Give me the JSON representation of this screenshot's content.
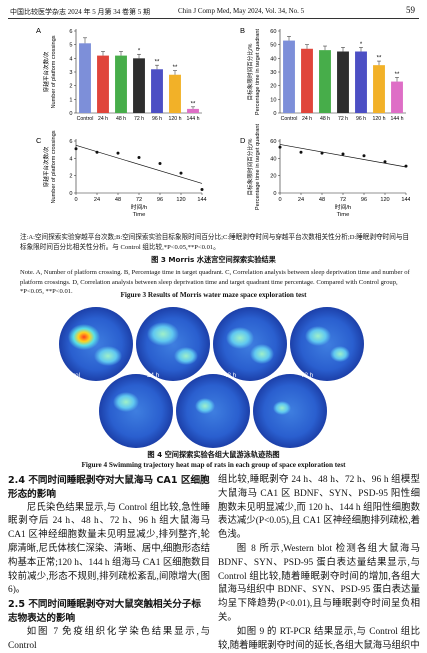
{
  "header": {
    "journal_cn": "中国比较医学杂志 2024 年 5 月第 34 卷第 5 期",
    "journal_en": "Chin J Comp Med, May 2024, Vol. 34, No. 5",
    "page": "59"
  },
  "figure3": {
    "panels": [
      {
        "type": "bar",
        "label": "A",
        "ylabel": [
          "穿越平台次数/次",
          "Number of platform crossings"
        ],
        "categories": [
          "Control",
          "24 h",
          "48 h",
          "72 h",
          "96 h",
          "120 h",
          "144 h"
        ],
        "values": [
          5.1,
          4.2,
          4.2,
          4.0,
          3.2,
          2.8,
          0.3
        ],
        "errors": [
          0.4,
          0.3,
          0.3,
          0.3,
          0.3,
          0.3,
          0.15
        ],
        "significance": [
          null,
          null,
          null,
          "*",
          "**",
          "**",
          "**"
        ],
        "colors": [
          "#7d8fd9",
          "#e0453b",
          "#47ad4a",
          "#2e2e2e",
          "#4c4fc4",
          "#f2b128",
          "#de6ec6"
        ],
        "ylim": [
          0,
          6
        ],
        "yticks": [
          0,
          1,
          2,
          3,
          4,
          5,
          6
        ]
      },
      {
        "type": "bar",
        "label": "B",
        "ylabel": [
          "目标象限时间百分比/%",
          "Percentage time in target quadrant"
        ],
        "categories": [
          "Control",
          "24 h",
          "48 h",
          "72 h",
          "96 h",
          "120 h",
          "144 h"
        ],
        "values": [
          53,
          47,
          46,
          45,
          45,
          35,
          23
        ],
        "errors": [
          3,
          3,
          3,
          3,
          3,
          3,
          3
        ],
        "significance": [
          null,
          null,
          null,
          null,
          "*",
          "**",
          "**"
        ],
        "colors": [
          "#7d8fd9",
          "#e0453b",
          "#47ad4a",
          "#2e2e2e",
          "#4c4fc4",
          "#f2b128",
          "#de6ec6"
        ],
        "ylim": [
          0,
          60
        ],
        "yticks": [
          0,
          10,
          20,
          30,
          40,
          50,
          60
        ]
      },
      {
        "type": "scatter",
        "label": "C",
        "ylabel": [
          "穿越平台次数/次",
          "Number of platform crossings"
        ],
        "xlabel": [
          "时间/h",
          "Time"
        ],
        "x": [
          0,
          24,
          48,
          72,
          96,
          120,
          144
        ],
        "values": [
          5.1,
          4.7,
          4.6,
          4.1,
          3.4,
          2.3,
          0.4
        ],
        "fit": {
          "x": [
            0,
            144
          ],
          "values": [
            5.5,
            1.1
          ]
        },
        "color": "#111111",
        "xlim": [
          0,
          144
        ],
        "xticks": [
          0,
          24,
          48,
          72,
          96,
          120,
          144
        ],
        "ylim": [
          0,
          6
        ],
        "yticks": [
          0,
          2,
          4,
          6
        ]
      },
      {
        "type": "scatter",
        "label": "D",
        "ylabel": [
          "目标象限时间百分比/%",
          "Percentage time in target quadrant"
        ],
        "xlabel": [
          "时间/h",
          "Time"
        ],
        "x": [
          0,
          24,
          48,
          72,
          96,
          120,
          144
        ],
        "values": [
          53,
          47,
          46,
          45,
          43,
          36,
          31
        ],
        "fit": {
          "x": [
            0,
            144
          ],
          "values": [
            56,
            30
          ]
        },
        "color": "#111111",
        "xlim": [
          0,
          144
        ],
        "xticks": [
          0,
          24,
          48,
          72,
          96,
          120,
          144
        ],
        "ylim": [
          0,
          60
        ],
        "yticks": [
          0,
          20,
          40,
          60
        ]
      }
    ],
    "note_cn": "注:A:空间探索实验穿越平台次数;B:空间探索实验目标象限时间百分比;C:睡眠剥夺时间与穿越平台次数相关性分析;D:睡眠剥夺时间与目标象限时间百分比相关性分析。与 Control 组比较,*P<0.05,**P<0.01。",
    "title_cn": "图 3  Morris 水迷宫空间探索实验结果",
    "note_en": "Note. A, Number of platform crossing. B, Percentage time in target quadrant. C, Correlation analysis between sleep deprivation time and number of platform crossings. D, Correlation analysis between sleep deprivation time and target quadrant time percentage. Compared with Control group, *P<0.05, **P<0.01.",
    "title_en": "Figure 3  Results of Morris water maze space exploration test"
  },
  "figure4": {
    "labels": [
      "Control",
      "24 h",
      "48 h",
      "72 h",
      "96 h",
      "120 h",
      "144 h"
    ],
    "title_cn": "图 4  空间探索实验各组大鼠游泳轨迹热图",
    "title_en": "Figure 4  Swimming trajectory heat map of rats in each group of space exploration test"
  },
  "body": {
    "left": {
      "heading1": "2.4  不同时间睡眠剥夺对大鼠海马 CA1 区细胞形态的影响",
      "para1": "尼氏染色结果显示,与 Control 组比较,急性睡眠剥夺后 24 h、48 h、72 h、96 h 组大鼠海马 CA1 区神经细胞数量未见明显减少,排列整齐,轮廓清晰,尼氏体核仁深染、清晰、居中,细胞形态结构基本正常;120 h、144 h 组海马 CA1 区细胞数目较前减少,形态不规则,排列疏松紊乱,间隙增大(图 6)。",
      "heading2": "2.5  不同时间睡眠剥夺对大鼠突触相关分子标志物表达的影响",
      "para2": "如图 7 免疫组织化学染色结果显示,与 Control"
    },
    "right": {
      "para1": "组比较,睡眠剥夺 24 h、48 h、72 h、96 h 组模型大鼠海马 CA1 区 BDNF、SYN、PSD-95 阳性细胞数未见明显减少,而 120 h、144 h 组阳性细胞数表达减少(P<0.05),且 CA1 区神经细胞排列疏松,着色浅。",
      "para2": "图 8 所示,Western blot 检测各组大鼠海马 BDNF、SYN、PSD-95 蛋白表达量结果显示,与 Control 组比较,随着睡眠剥夺时间的增加,各组大鼠海马组织中 BDNF、SYN、PSD-95 蛋白表达量均呈下降趋势(P<0.01),且与睡眠剥夺时间呈负相关。",
      "para3": "如图 9 的 RT-PCR 结果显示,与 Control 组比较,随着睡眠剥夺时间的延长,各组大鼠海马组织中"
    }
  }
}
